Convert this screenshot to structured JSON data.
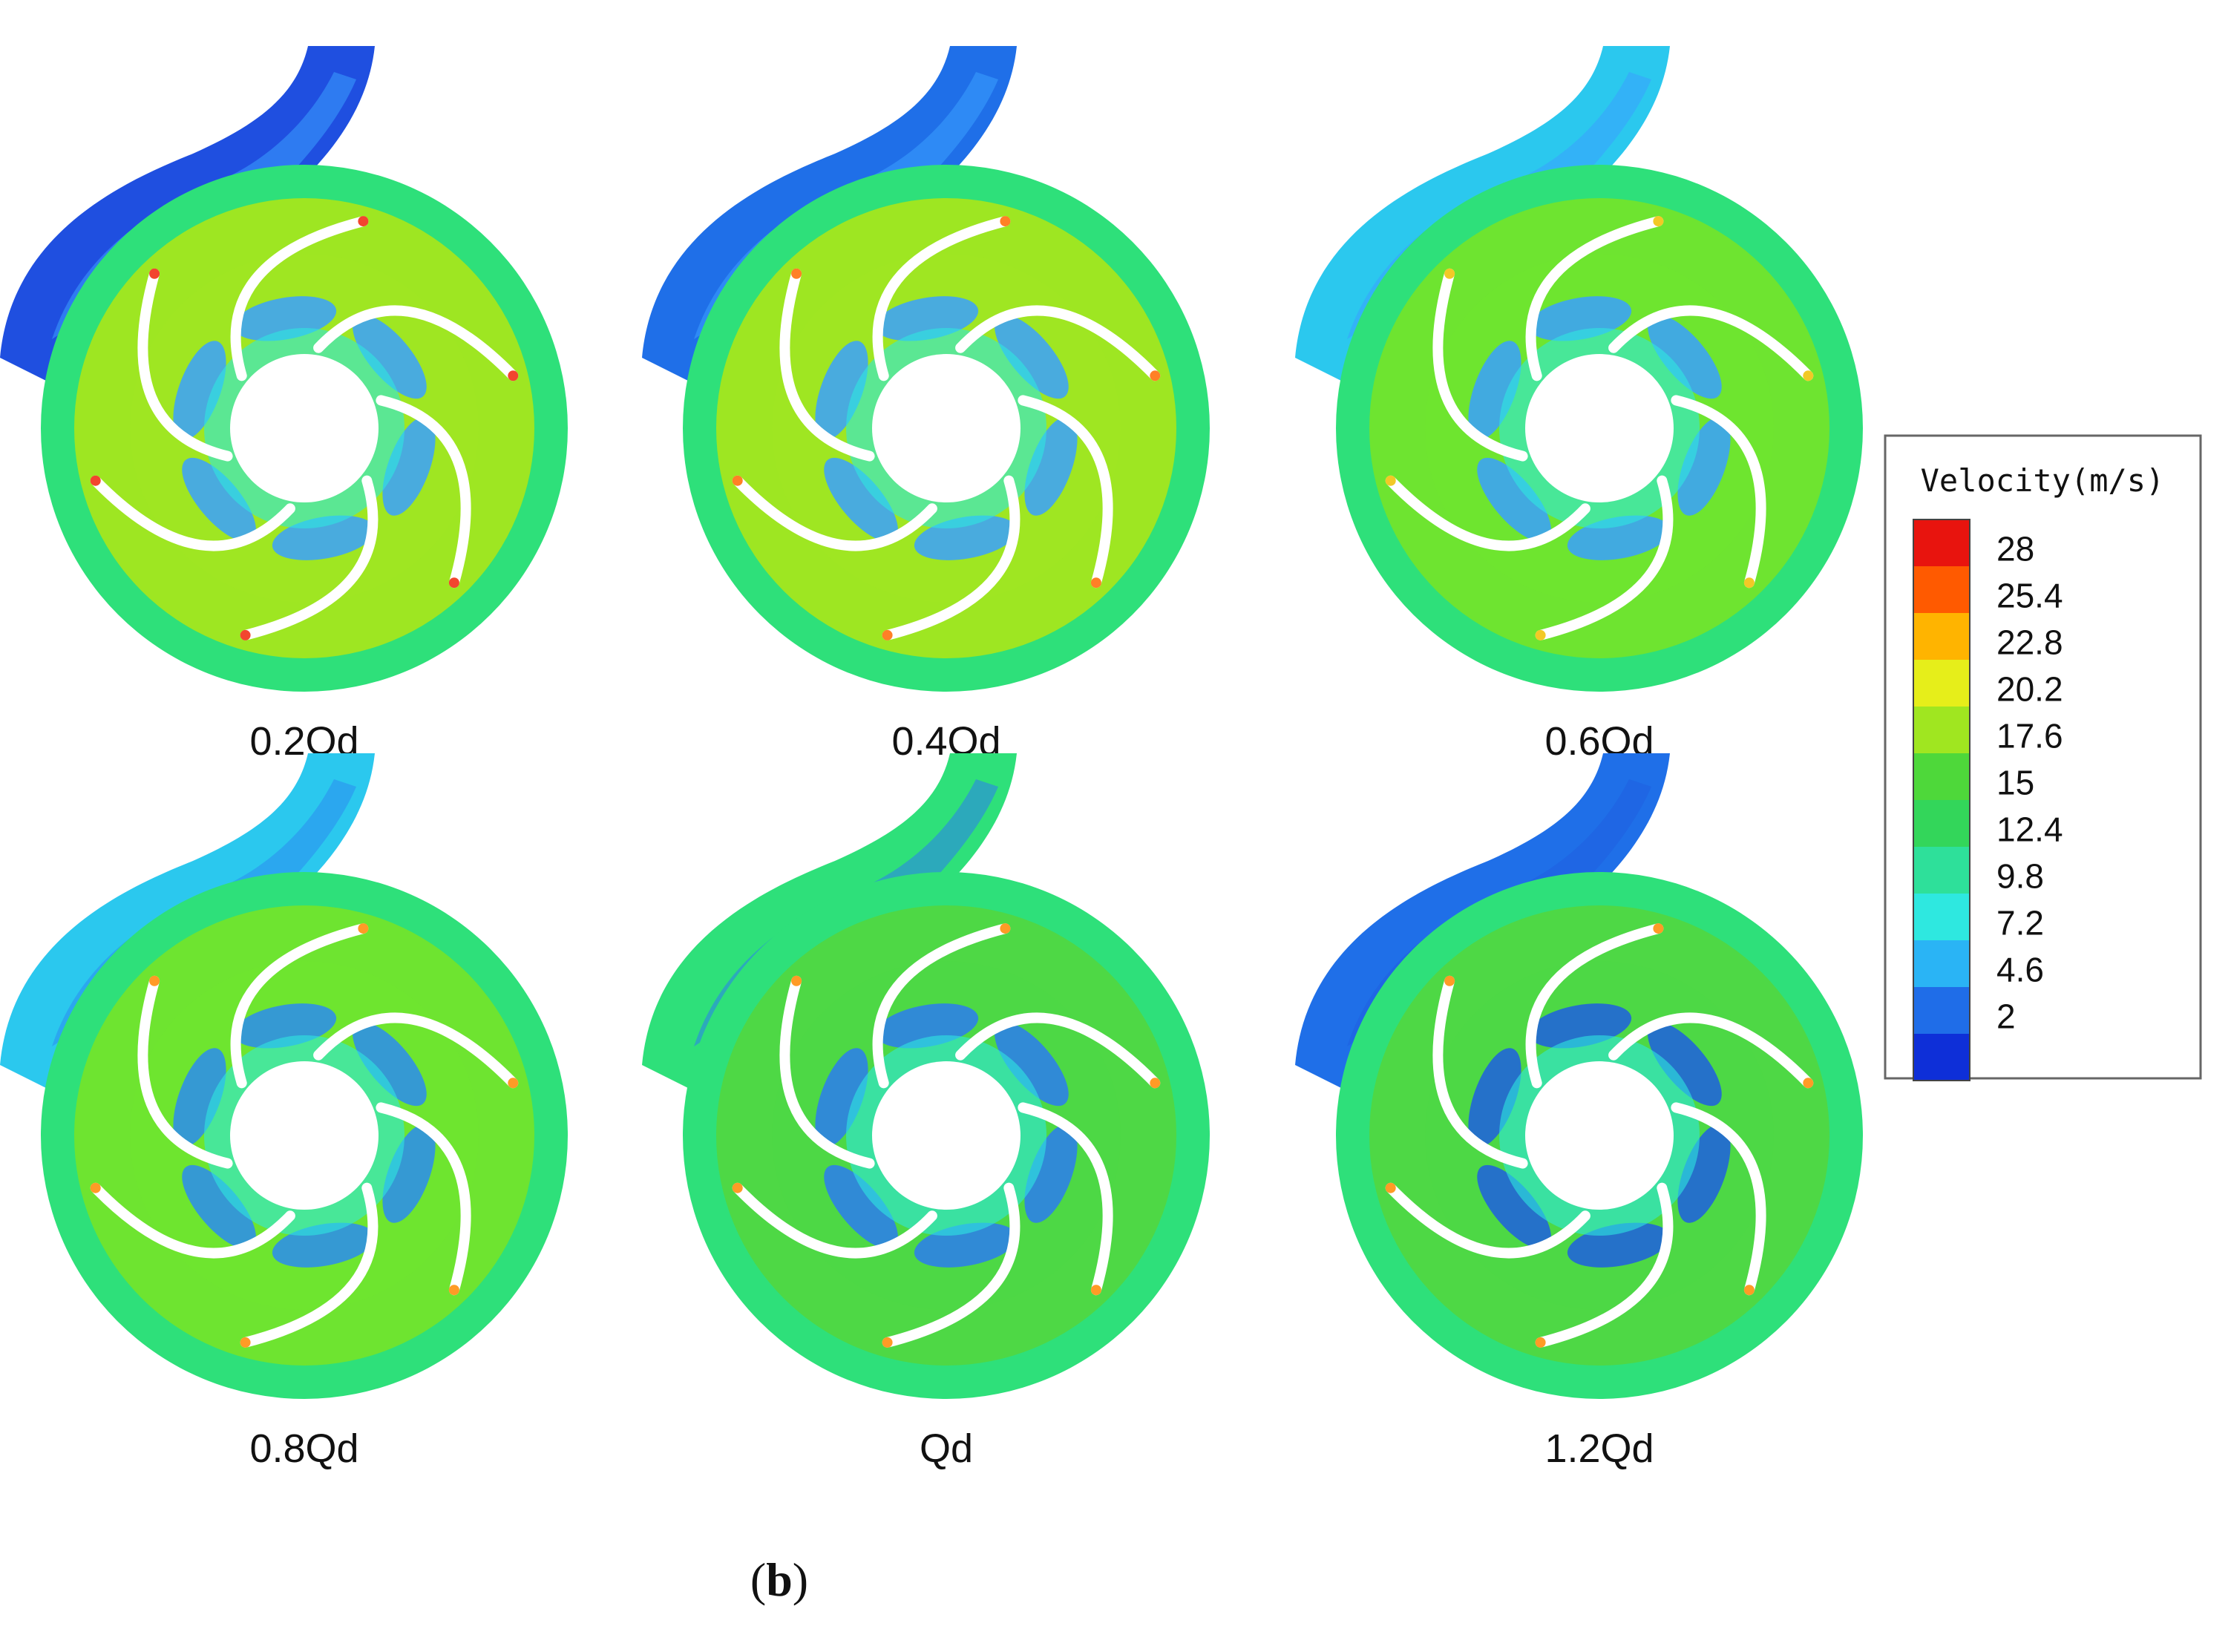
{
  "figure": {
    "subfigure_label": "b",
    "panels": [
      {
        "label": "0.2Qd",
        "casing_primary": "#1f4fe0",
        "impeller_primary": "#9ee622",
        "outer_ring": "#2ee07a",
        "inlet_level": "#3aa0ff",
        "hot_spot": "#f0240a"
      },
      {
        "label": "0.4Qd",
        "casing_primary": "#1f6fe8",
        "impeller_primary": "#9ee622",
        "outer_ring": "#2ee07a",
        "inlet_level": "#3aa0ff",
        "hot_spot": "#ff6a00"
      },
      {
        "label": "0.6Qd",
        "casing_primary": "#2bc8ee",
        "impeller_primary": "#6ee430",
        "outer_ring": "#2ee07a",
        "inlet_level": "#3aa0ff",
        "hot_spot": "#f0c000"
      },
      {
        "label": "0.8Qd",
        "casing_primary": "#2bc8ee",
        "impeller_primary": "#6ee430",
        "outer_ring": "#2ee07a",
        "inlet_level": "#2b8cf0",
        "hot_spot": "#ff8a00"
      },
      {
        "label": "Qd",
        "casing_primary": "#2ee07a",
        "impeller_primary": "#4ed845",
        "outer_ring": "#2ee07a",
        "inlet_level": "#2b7cf0",
        "hot_spot": "#ff8a00"
      },
      {
        "label": "1.2Qd",
        "casing_primary": "#1f6fe8",
        "impeller_primary": "#4ed845",
        "outer_ring": "#2ee07a",
        "inlet_level": "#1f5fe0",
        "hot_spot": "#ff8a00"
      }
    ],
    "legend": {
      "title": "Velocity(m/s)",
      "ticks": [
        "28",
        "25.4",
        "22.8",
        "20.2",
        "17.6",
        "15",
        "12.4",
        "9.8",
        "7.2",
        "4.6",
        "2"
      ],
      "colors": [
        "#e8140e",
        "#ff5a00",
        "#ffb400",
        "#e6ee1a",
        "#a0e620",
        "#4ed83a",
        "#33d65a",
        "#2ee09a",
        "#2ee8e0",
        "#2ab4f5",
        "#1f6de8",
        "#0e2fd8"
      ]
    }
  }
}
